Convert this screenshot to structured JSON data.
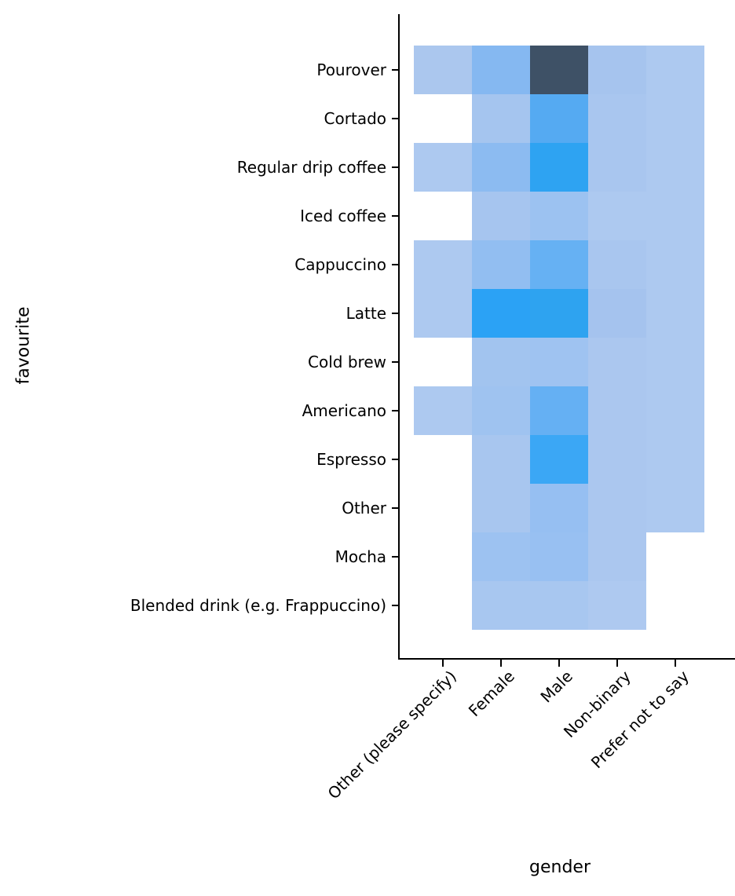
{
  "chart_data": {
    "type": "heatmap",
    "title": "",
    "xlabel": "gender",
    "ylabel": "favourite",
    "legend": "none",
    "grid": false,
    "x_categories": [
      "Other (please specify)",
      "Female",
      "Male",
      "Non-binary",
      "Prefer not to say"
    ],
    "y_categories": [
      "Pourover",
      "Cortado",
      "Regular drip coffee",
      "Iced coffee",
      "Cappuccino",
      "Latte",
      "Cold brew",
      "Americano",
      "Espresso",
      "Other",
      "Mocha",
      "Blended drink (e.g. Frappuccino)"
    ],
    "empty_cell_color": "#ffffff",
    "axis_color": "#000000",
    "text_color": "#000000",
    "max_count_color": "#3e5166",
    "min_count_color": "#adc9f0",
    "cell_colors": [
      [
        "#abc7ee",
        "#85b8f1",
        "#3e5166",
        "#a6c4ee",
        "#adc9f0"
      ],
      [
        null,
        "#a5c5ef",
        "#55aaf2",
        "#a9c6ef",
        "#adc9f0"
      ],
      [
        "#adc9f0",
        "#8cbbf1",
        "#2ea3f2",
        "#a9c6ef",
        "#adc9f0"
      ],
      [
        null,
        "#a6c5ef",
        "#9cc2f1",
        "#adc9f0",
        "#adc9f0"
      ],
      [
        "#adc9f0",
        "#92bef1",
        "#66b1f3",
        "#a9c6ef",
        "#adc9f0"
      ],
      [
        "#adc9f0",
        "#2ba2f5",
        "#2ea3f0",
        "#a5c3ee",
        "#adc9f0"
      ],
      [
        null,
        "#a2c4ef",
        "#9fc3f1",
        "#abc7ef",
        "#adc9f0"
      ],
      [
        "#adc9f0",
        "#9fc3f0",
        "#65b0f3",
        "#abc7ef",
        "#adc9f0"
      ],
      [
        null,
        "#a8c6ef",
        "#3ba7f5",
        "#abc7ef",
        "#adc9f0"
      ],
      [
        null,
        "#a8c6ef",
        "#96bff2",
        "#abc7ef",
        "#adc9f0"
      ],
      [
        null,
        "#9dc2f1",
        "#98c0f2",
        "#abc7ef",
        null
      ],
      [
        null,
        "#a8c7f0",
        "#a8c7f0",
        "#aec9f0",
        null
      ]
    ]
  }
}
